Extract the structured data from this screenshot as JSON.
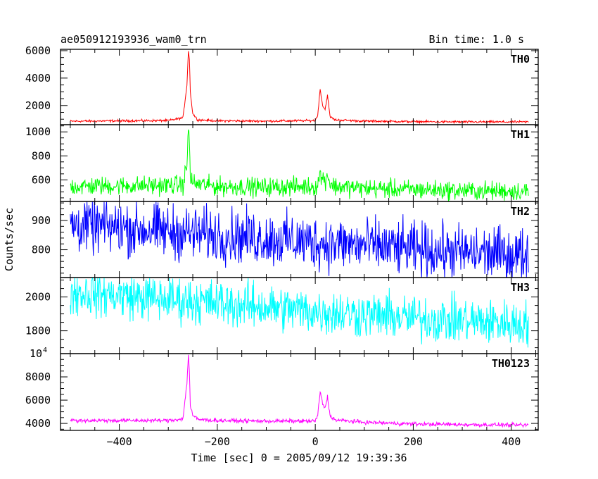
{
  "header": {
    "title": "ae050912193936_wam0_trn",
    "bin_time": "Bin time: 1.0 s"
  },
  "xaxis": {
    "label": "Time [sec] 0 = 2005/09/12 19:39:36",
    "range": [
      -520,
      455
    ],
    "ticks": [
      -400,
      -200,
      0,
      200,
      400
    ],
    "tick_labels": [
      "−400",
      "−200",
      "0",
      "200",
      "400"
    ],
    "minor_step": 50
  },
  "yaxis_label": "Counts/sec",
  "chart_data": {
    "type": "line",
    "x_range": [
      -520,
      455
    ],
    "title": "ae050912193936_wam0_trn",
    "xlabel": "Time [sec] 0 = 2005/09/12 19:39:36",
    "ylabel": "Counts/sec",
    "grid": false,
    "panels": [
      {
        "name": "TH0",
        "color": "#ff0000",
        "ylim": [
          600,
          6100
        ],
        "ticks": [
          2000,
          4000,
          6000
        ],
        "tick_labels": [
          "2000",
          "4000",
          "6000"
        ],
        "minor": 500,
        "x": [
          -500,
          -400,
          -300,
          -270,
          -262,
          -259,
          -257,
          -255,
          -250,
          -240,
          -200,
          -100,
          0,
          5,
          10,
          15,
          20,
          25,
          30,
          40,
          100,
          200,
          300,
          435
        ],
        "y": [
          850,
          880,
          900,
          1100,
          3500,
          6000,
          5400,
          3000,
          1400,
          950,
          880,
          860,
          900,
          1300,
          3200,
          2000,
          1700,
          2800,
          1200,
          950,
          860,
          820,
          800,
          800
        ],
        "noise": 60
      },
      {
        "name": "TH1",
        "color": "#00ff00",
        "ylim": [
          420,
          1060
        ],
        "ticks": [
          600,
          800,
          1000
        ],
        "tick_labels": [
          "600",
          "800",
          "1000"
        ],
        "minor": 50,
        "x": [
          -500,
          -400,
          -300,
          -270,
          -262,
          -259,
          -257,
          -255,
          -250,
          -200,
          -100,
          0,
          5,
          10,
          15,
          20,
          25,
          30,
          40,
          100,
          200,
          300,
          435
        ],
        "y": [
          545,
          550,
          555,
          560,
          720,
          1040,
          900,
          640,
          570,
          545,
          540,
          545,
          560,
          650,
          610,
          590,
          660,
          570,
          545,
          530,
          520,
          510,
          505
        ],
        "noise": 55
      },
      {
        "name": "TH2",
        "color": "#0000ff",
        "ylim": [
          705,
          965
        ],
        "ticks": [
          800,
          900
        ],
        "tick_labels": [
          "800",
          "900"
        ],
        "minor": 20,
        "x": [
          -500,
          -400,
          -300,
          -200,
          -100,
          0,
          100,
          200,
          300,
          435
        ],
        "y": [
          885,
          875,
          862,
          850,
          838,
          825,
          815,
          800,
          790,
          782
        ],
        "noise": 65
      },
      {
        "name": "TH3",
        "color": "#00ffff",
        "ylim": [
          1665,
          2115
        ],
        "ticks": [
          1800,
          2000
        ],
        "tick_labels": [
          "1800",
          "2000"
        ],
        "minor": 50,
        "x": [
          -500,
          -400,
          -300,
          -200,
          -100,
          0,
          100,
          200,
          300,
          435
        ],
        "y": [
          2030,
          2010,
          1985,
          1965,
          1940,
          1915,
          1895,
          1875,
          1860,
          1840
        ],
        "noise": 95
      },
      {
        "name": "TH0123",
        "color": "#ff00ff",
        "ylim": [
          3400,
          10000
        ],
        "ticks": [
          4000,
          6000,
          8000
        ],
        "tick_labels": [
          "4000",
          "6000",
          "8000"
        ],
        "top_label": "10",
        "top_label_exp": "4",
        "minor": 500,
        "x": [
          -500,
          -400,
          -300,
          -270,
          -262,
          -259,
          -257,
          -255,
          -250,
          -240,
          -200,
          -100,
          0,
          5,
          10,
          15,
          20,
          25,
          30,
          40,
          100,
          200,
          300,
          435
        ],
        "y": [
          4250,
          4250,
          4250,
          4400,
          7500,
          9900,
          8500,
          5500,
          4700,
          4350,
          4250,
          4200,
          4200,
          4700,
          6700,
          5700,
          5300,
          6300,
          4700,
          4300,
          4100,
          3950,
          3900,
          3850
        ],
        "noise": 120
      }
    ]
  }
}
